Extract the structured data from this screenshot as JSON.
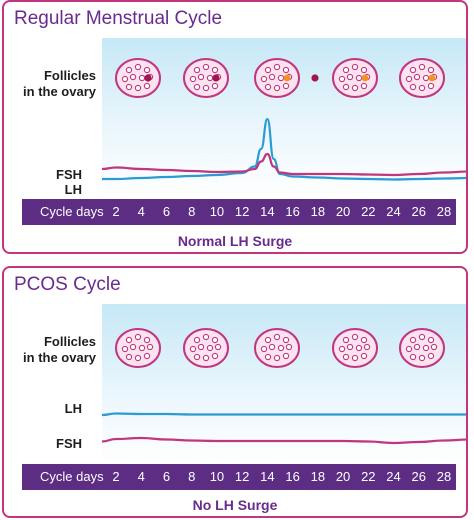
{
  "panels": [
    {
      "title": "Regular Menstrual Cycle",
      "follicle_label_1": "Follicles",
      "follicle_label_2": "in the ovary",
      "label_fsh": "FSH",
      "label_lh": "LH",
      "axis_title": "Cycle days",
      "caption": "Normal LH Surge"
    },
    {
      "title": "PCOS Cycle",
      "follicle_label_1": "Follicles",
      "follicle_label_2": "in the ovary",
      "label_lh": "LH",
      "label_fsh": "FSH",
      "axis_title": "Cycle days",
      "caption": "No LH Surge"
    }
  ],
  "cycle_days": [
    "2",
    "4",
    "6",
    "8",
    "10",
    "12",
    "14",
    "16",
    "18",
    "20",
    "22",
    "24",
    "26",
    "28"
  ],
  "colors": {
    "border": "#c2357f",
    "title": "#6a2b8f",
    "axis_bar": "#5c2d82",
    "lh_line": "#2b9bd3",
    "fsh_line": "#c2357f",
    "follicle": "#c2357f",
    "follicle_fill": "#fbe4f0",
    "dominant_follicle": "#a0144f",
    "ovulated_egg": "#f39322"
  },
  "chart_data": [
    {
      "type": "line",
      "x": [
        1,
        2,
        4,
        6,
        8,
        10,
        12,
        13,
        13.5,
        14,
        14.5,
        15,
        16,
        18,
        20,
        22,
        24,
        26,
        28,
        29
      ],
      "series": [
        {
          "name": "LH",
          "values": [
            2,
            2,
            2.2,
            2.4,
            2.6,
            2.8,
            3.2,
            4.5,
            8,
            14,
            6,
            3,
            2.5,
            2.3,
            2.1,
            2,
            1.9,
            2,
            2.1,
            2.2
          ]
        },
        {
          "name": "FSH",
          "values": [
            4,
            4.3,
            4,
            3.8,
            3.6,
            3.4,
            3.5,
            4,
            5.5,
            7,
            4.5,
            3.3,
            3,
            3,
            3,
            2.9,
            2.8,
            3,
            3.3,
            3.5
          ]
        }
      ]
    },
    {
      "type": "line",
      "x": [
        1,
        2,
        4,
        6,
        8,
        10,
        12,
        14,
        16,
        18,
        20,
        22,
        24,
        26,
        28,
        29
      ],
      "series": [
        {
          "name": "LH",
          "values": [
            7.2,
            7.5,
            7.4,
            7.4,
            7.3,
            7.3,
            7.3,
            7.3,
            7.3,
            7.3,
            7.3,
            7.3,
            7.3,
            7.3,
            7.3,
            7.3
          ]
        },
        {
          "name": "FSH",
          "values": [
            1.9,
            2.4,
            2.6,
            2.3,
            2.1,
            2.0,
            2.0,
            2.0,
            2.0,
            2.0,
            2.0,
            1.9,
            1.6,
            1.8,
            2.1,
            2.3
          ]
        }
      ]
    }
  ]
}
